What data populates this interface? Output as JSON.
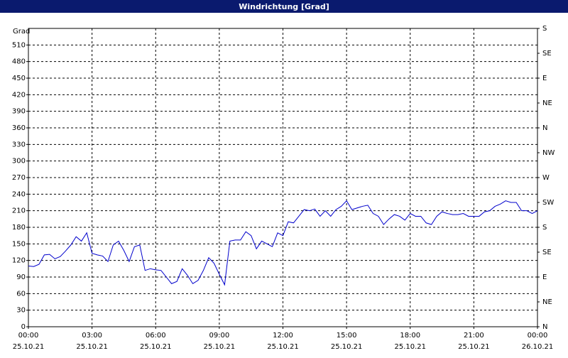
{
  "chart_data": {
    "type": "line",
    "title": "Windrichtung [Grad]",
    "y_label": "Grad",
    "x": [
      0,
      0.25,
      0.5,
      0.75,
      1,
      1.25,
      1.5,
      1.75,
      2,
      2.25,
      2.5,
      2.75,
      3,
      3.25,
      3.5,
      3.75,
      4,
      4.25,
      4.5,
      4.75,
      5,
      5.25,
      5.5,
      5.75,
      6,
      6.25,
      6.5,
      6.75,
      7,
      7.25,
      7.5,
      7.75,
      8,
      8.25,
      8.5,
      8.75,
      9,
      9.25,
      9.5,
      9.75,
      10,
      10.25,
      10.5,
      10.75,
      11,
      11.25,
      11.5,
      11.75,
      12,
      12.25,
      12.5,
      12.75,
      13,
      13.25,
      13.5,
      13.75,
      14,
      14.25,
      14.5,
      14.75,
      15,
      15.25,
      15.5,
      15.75,
      16,
      16.25,
      16.5,
      16.75,
      17,
      17.25,
      17.5,
      17.75,
      18,
      18.25,
      18.5,
      18.75,
      19,
      19.25,
      19.5,
      19.75,
      20,
      20.25,
      20.5,
      20.75,
      21,
      21.25,
      21.5,
      21.75,
      22,
      22.25,
      22.5,
      22.75,
      23,
      23.25,
      23.5,
      23.75,
      24
    ],
    "series": [
      {
        "color": "#0000cc",
        "values": [
          110,
          109,
          113,
          130,
          131,
          123,
          127,
          137,
          148,
          163,
          155,
          170,
          133,
          130,
          128,
          118,
          148,
          155,
          138,
          118,
          145,
          148,
          102,
          105,
          103,
          102,
          90,
          78,
          82,
          105,
          93,
          78,
          84,
          102,
          125,
          115,
          95,
          76,
          155,
          157,
          157,
          172,
          165,
          141,
          155,
          150,
          145,
          170,
          165,
          190,
          188,
          200,
          212,
          210,
          213,
          200,
          210,
          200,
          212,
          218,
          228,
          212,
          215,
          218,
          220,
          205,
          200,
          185,
          195,
          203,
          200,
          193,
          205,
          200,
          200,
          188,
          185,
          200,
          208,
          205,
          203,
          203,
          205,
          200,
          200,
          200,
          208,
          210,
          218,
          222,
          228,
          225,
          225,
          210,
          210,
          205,
          210
        ]
      }
    ],
    "xlim": [
      0,
      24
    ],
    "xticks": [
      {
        "value": 0,
        "label": "00:00"
      },
      {
        "value": 3,
        "label": "03:00"
      },
      {
        "value": 6,
        "label": "06:00"
      },
      {
        "value": 9,
        "label": "09:00"
      },
      {
        "value": 12,
        "label": "12:00"
      },
      {
        "value": 15,
        "label": "15:00"
      },
      {
        "value": 18,
        "label": "18:00"
      },
      {
        "value": 21,
        "label": "21:00"
      },
      {
        "value": 24,
        "label": "00:00"
      }
    ],
    "xtick_dates": [
      "25.10.21",
      "25.10.21",
      "25.10.21",
      "25.10.21",
      "25.10.21",
      "25.10.21",
      "25.10.21",
      "25.10.21",
      "26.10.21"
    ],
    "ylim": [
      0,
      540
    ],
    "yticks": [
      0,
      30,
      60,
      90,
      120,
      150,
      180,
      210,
      240,
      270,
      300,
      330,
      360,
      390,
      420,
      450,
      480,
      510
    ],
    "y2lim": [
      0,
      540
    ],
    "y2ticks": [
      {
        "value": 0,
        "label": "N"
      },
      {
        "value": 45,
        "label": "NE"
      },
      {
        "value": 90,
        "label": "E"
      },
      {
        "value": 135,
        "label": "SE"
      },
      {
        "value": 180,
        "label": "S"
      },
      {
        "value": 225,
        "label": "SW"
      },
      {
        "value": 270,
        "label": "W"
      },
      {
        "value": 315,
        "label": "NW"
      },
      {
        "value": 360,
        "label": "N"
      },
      {
        "value": 405,
        "label": "NE"
      },
      {
        "value": 450,
        "label": "E"
      },
      {
        "value": 495,
        "label": "SE"
      },
      {
        "value": 540,
        "label": "S"
      }
    ],
    "grid": true
  }
}
